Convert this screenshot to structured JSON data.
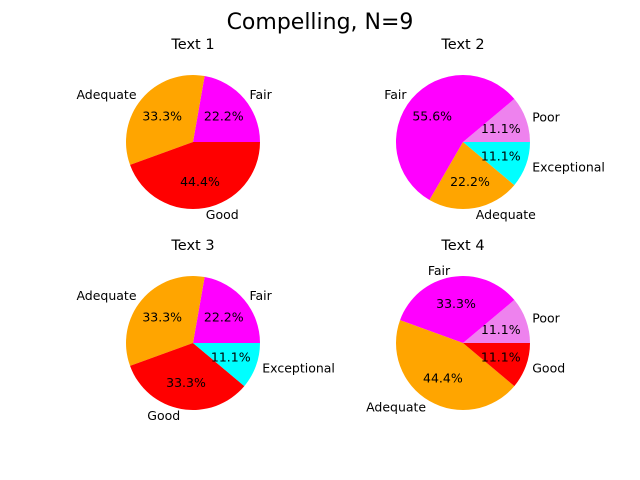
{
  "figure": {
    "title": "Compelling, N=9"
  },
  "chart_data": [
    {
      "type": "pie",
      "title": "Text 1",
      "slices": [
        {
          "label": "Fair",
          "value": 2,
          "percent": "22.2%",
          "color": "#ff00ff"
        },
        {
          "label": "Adequate",
          "value": 3,
          "percent": "33.3%",
          "color": "#ffa500"
        },
        {
          "label": "Good",
          "value": 4,
          "percent": "44.4%",
          "color": "#ff0000"
        }
      ]
    },
    {
      "type": "pie",
      "title": "Text 2",
      "slices": [
        {
          "label": "Poor",
          "value": 1,
          "percent": "11.1%",
          "color": "#ee82ee"
        },
        {
          "label": "Fair",
          "value": 5,
          "percent": "55.6%",
          "color": "#ff00ff"
        },
        {
          "label": "Adequate",
          "value": 2,
          "percent": "22.2%",
          "color": "#ffa500"
        },
        {
          "label": "Exceptional",
          "value": 1,
          "percent": "11.1%",
          "color": "#00ffff"
        }
      ]
    },
    {
      "type": "pie",
      "title": "Text 3",
      "slices": [
        {
          "label": "Fair",
          "value": 2,
          "percent": "22.2%",
          "color": "#ff00ff"
        },
        {
          "label": "Adequate",
          "value": 3,
          "percent": "33.3%",
          "color": "#ffa500"
        },
        {
          "label": "Good",
          "value": 3,
          "percent": "33.3%",
          "color": "#ff0000"
        },
        {
          "label": "Exceptional",
          "value": 1,
          "percent": "11.1%",
          "color": "#00ffff"
        }
      ]
    },
    {
      "type": "pie",
      "title": "Text 4",
      "slices": [
        {
          "label": "Poor",
          "value": 1,
          "percent": "11.1%",
          "color": "#ee82ee"
        },
        {
          "label": "Fair",
          "value": 3,
          "percent": "33.3%",
          "color": "#ff00ff"
        },
        {
          "label": "Adequate",
          "value": 4,
          "percent": "44.4%",
          "color": "#ffa500"
        },
        {
          "label": "Good",
          "value": 1,
          "percent": "11.1%",
          "color": "#ff0000"
        }
      ]
    }
  ]
}
